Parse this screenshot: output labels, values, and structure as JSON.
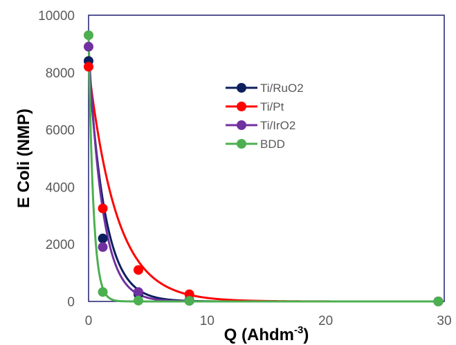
{
  "chart_data": {
    "type": "scatter",
    "title": "",
    "xlabel": "Q (Ahdm",
    "xlabel_sup": "-3",
    "xlabel_tail": ")",
    "ylabel": "E Coli (NMP)",
    "xlim": [
      0,
      30
    ],
    "ylim": [
      0,
      10000
    ],
    "x_ticks": [
      "0",
      "10",
      "20",
      "30"
    ],
    "y_ticks": [
      "0",
      "2000",
      "4000",
      "6000",
      "8000",
      "10000"
    ],
    "grid": false,
    "legend_position": "center-right",
    "series": [
      {
        "name": "Ti/RuO2",
        "color": "#0c1f5e",
        "x": [
          0,
          1.2,
          4.2,
          8.5,
          29.5
        ],
        "y": [
          8400,
          2200,
          250,
          50,
          0
        ],
        "fit_k": 0.72
      },
      {
        "name": "Ti/Pt",
        "color": "#ff0000",
        "x": [
          0,
          1.2,
          4.2,
          8.5,
          29.5
        ],
        "y": [
          8200,
          3250,
          1100,
          250,
          0
        ],
        "fit_k": 0.42
      },
      {
        "name": "Ti/IrO2",
        "color": "#7030a0",
        "x": [
          0,
          1.2,
          4.2,
          8.5,
          29.5
        ],
        "y": [
          8900,
          1900,
          330,
          20,
          0
        ],
        "fit_k": 0.85
      },
      {
        "name": "BDD",
        "color": "#4caf50",
        "x": [
          0,
          1.2,
          4.2,
          8.5,
          29.5
        ],
        "y": [
          9300,
          330,
          30,
          20,
          0
        ],
        "fit_k": 2.5
      }
    ]
  }
}
